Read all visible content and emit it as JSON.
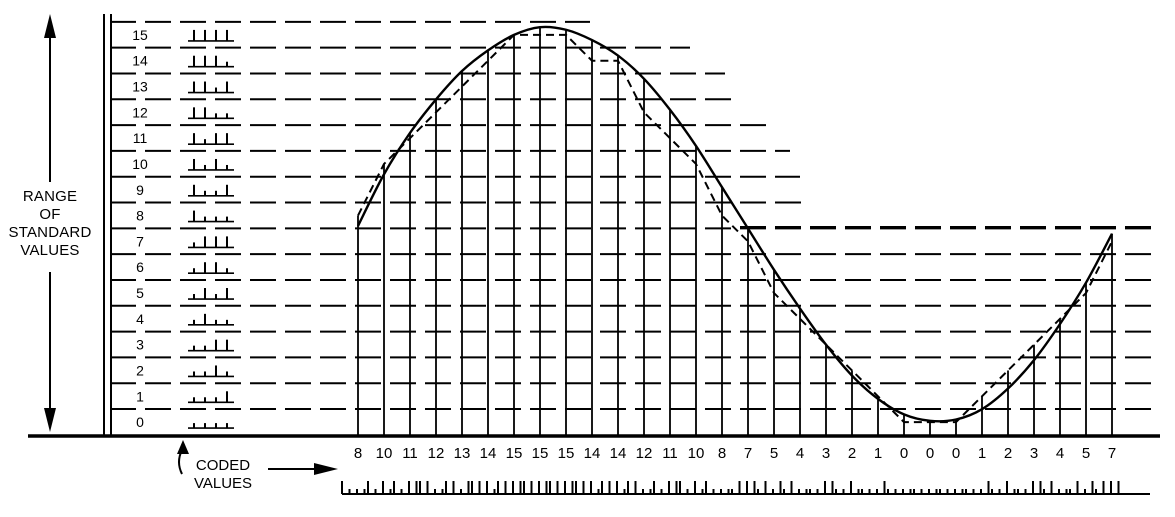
{
  "labels": {
    "range_line1": "RANGE",
    "range_line2": "OF",
    "range_line3": "STANDARD",
    "range_line4": "VALUES",
    "coded_line1": "CODED",
    "coded_line2": "VALUES"
  },
  "chart_data": {
    "type": "line",
    "levels": [
      "0",
      "1",
      "2",
      "3",
      "4",
      "5",
      "6",
      "7",
      "8",
      "9",
      "10",
      "11",
      "12",
      "13",
      "14",
      "15"
    ],
    "samples": [
      8,
      10,
      11,
      12,
      13,
      14,
      15,
      15,
      15,
      14,
      14,
      12,
      11,
      10,
      8,
      7,
      5,
      4,
      3,
      2,
      1,
      0,
      0,
      0,
      1,
      2,
      3,
      4,
      5,
      7
    ],
    "sample_labels": [
      "8",
      "10",
      "11",
      "12",
      "13",
      "14",
      "15",
      "15",
      "15",
      "14",
      "14",
      "12",
      "11",
      "10",
      "8",
      "7",
      "5",
      "4",
      "3",
      "2",
      "1",
      "0",
      "0",
      "0",
      "1",
      "2",
      "3",
      "4",
      "5",
      "7"
    ],
    "series": [
      {
        "kind": "continuous signal (solid curve)",
        "values": [
          7.6,
          9.6,
          11.2,
          12.5,
          13.6,
          14.4,
          15.0,
          15.3,
          15.2,
          14.8,
          14.2,
          13.3,
          12.1,
          10.7,
          9.1,
          7.5,
          5.9,
          4.4,
          3.0,
          1.8,
          0.9,
          0.3,
          0.05,
          0.1,
          0.5,
          1.3,
          2.4,
          3.8,
          5.4,
          7.3
        ]
      },
      {
        "kind": "quantized signal (dashed line)",
        "values": [
          8,
          10,
          11,
          12,
          13,
          14,
          15,
          15,
          15,
          14,
          14,
          12,
          11,
          10,
          8,
          7,
          5,
          4,
          3,
          2,
          1,
          0,
          0,
          0,
          1,
          2,
          3,
          4,
          5,
          7
        ]
      }
    ],
    "ylim": [
      0,
      15
    ]
  }
}
